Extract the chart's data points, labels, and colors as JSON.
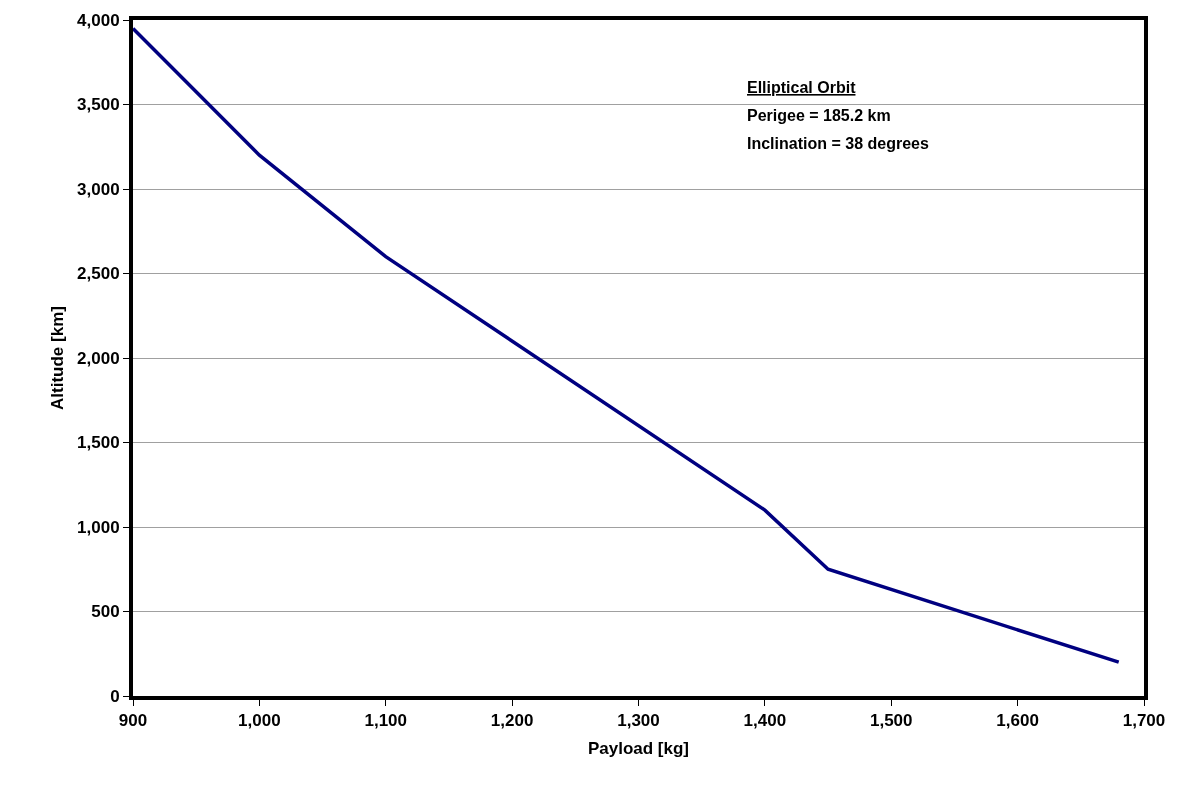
{
  "chart_data": {
    "type": "line",
    "xlabel": "Payload [kg]",
    "ylabel": "Altitude [km]",
    "x": [
      900,
      1000,
      1100,
      1400,
      1450,
      1680
    ],
    "series": [
      {
        "color": "#000080",
        "values": [
          3950,
          3200,
          2600,
          1100,
          750,
          200
        ]
      }
    ],
    "xlim": [
      900,
      1700
    ],
    "xticks": [
      900,
      {
        "value": 1000,
        "label": "1,000"
      },
      {
        "value": 1100,
        "label": "1,100"
      },
      {
        "value": 1200,
        "label": "1,200"
      },
      {
        "value": 1300,
        "label": "1,300"
      },
      {
        "value": 1400,
        "label": "1,400"
      },
      {
        "value": 1500,
        "label": "1,500"
      },
      {
        "value": 1600,
        "label": "1,600"
      },
      {
        "value": 1700,
        "label": "1,700"
      }
    ],
    "ylim": [
      0,
      4000
    ],
    "yticks": [
      0,
      500,
      {
        "value": 1000,
        "label": "1,000"
      },
      {
        "value": 1500,
        "label": "1,500"
      },
      {
        "value": 2000,
        "label": "2,000"
      },
      {
        "value": 2500,
        "label": "2,500"
      },
      {
        "value": 3000,
        "label": "3,000"
      },
      {
        "value": 3500,
        "label": "3,500"
      },
      {
        "value": 4000,
        "label": "4,000"
      }
    ],
    "grid": "y",
    "annotations": [
      "Elliptical Orbit",
      "Perigee = 185.2 km",
      "Inclination = 38 degrees"
    ]
  }
}
